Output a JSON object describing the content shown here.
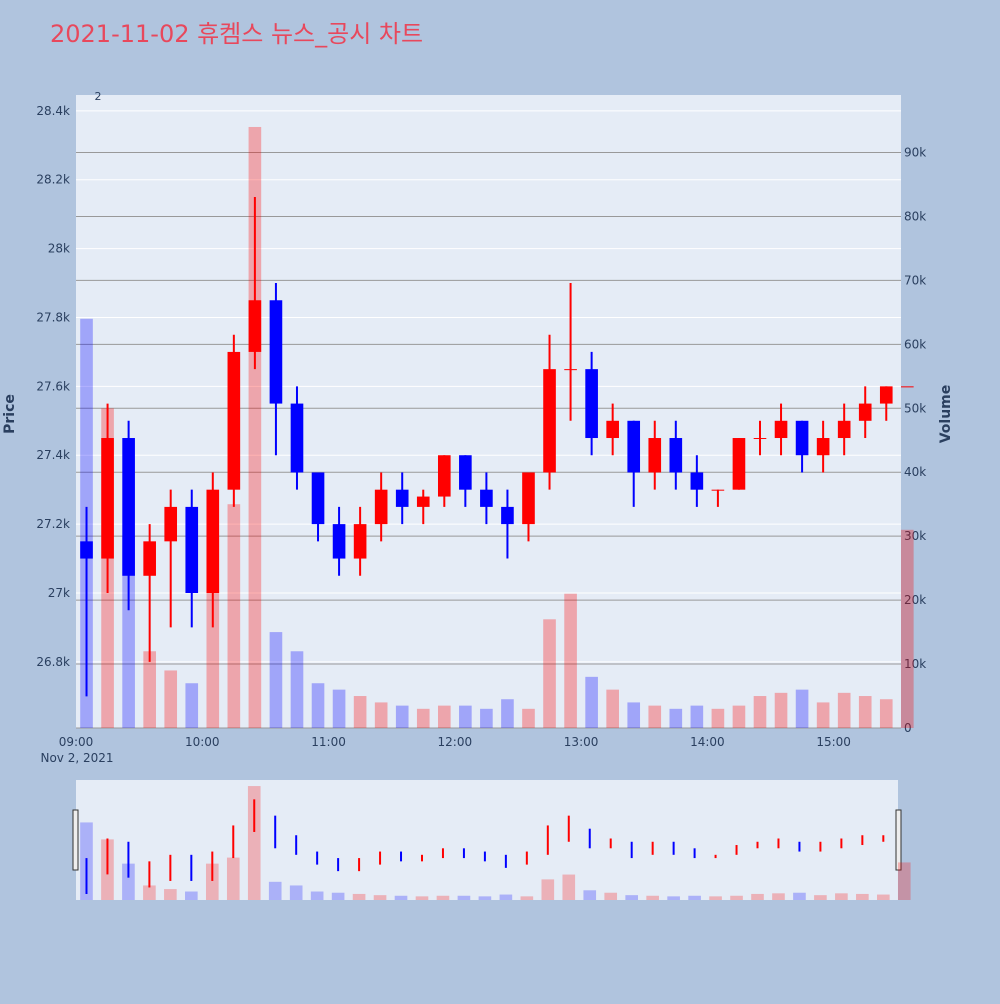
{
  "chart_data": {
    "type": "candlestick",
    "title": "2021-11-02 휴켐스 뉴스_공시 차트",
    "y_label": "Price",
    "y2_label": "Volume",
    "annotation": "2",
    "date_label": "Nov 2, 2021",
    "x": [
      "09:00",
      "09:10",
      "09:20",
      "09:30",
      "09:40",
      "09:50",
      "10:00",
      "10:10",
      "10:20",
      "10:30",
      "10:40",
      "10:50",
      "11:00",
      "11:10",
      "11:20",
      "11:30",
      "11:40",
      "11:50",
      "12:00",
      "12:10",
      "12:20",
      "12:30",
      "12:40",
      "12:50",
      "13:00",
      "13:10",
      "13:20",
      "13:30",
      "13:40",
      "13:50",
      "14:00",
      "14:10",
      "14:20",
      "14:30",
      "14:40",
      "14:50",
      "15:00",
      "15:10",
      "15:20",
      "15:30"
    ],
    "open": [
      27150,
      27100,
      27450,
      27050,
      27150,
      27250,
      27000,
      27300,
      27700,
      27850,
      27550,
      27350,
      27200,
      27100,
      27200,
      27300,
      27250,
      27280,
      27400,
      27300,
      27250,
      27200,
      27350,
      27650,
      27650,
      27450,
      27500,
      27350,
      27450,
      27350,
      27300,
      27300,
      27450,
      27450,
      27500,
      27400,
      27450,
      27500,
      27550,
      27600
    ],
    "high": [
      27250,
      27550,
      27500,
      27200,
      27300,
      27300,
      27350,
      27750,
      28150,
      27900,
      27600,
      27350,
      27250,
      27250,
      27350,
      27350,
      27300,
      27400,
      27400,
      27350,
      27300,
      27350,
      27750,
      27900,
      27700,
      27550,
      27500,
      27500,
      27500,
      27400,
      27300,
      27450,
      27500,
      27550,
      27500,
      27500,
      27550,
      27600,
      27600,
      27600
    ],
    "low": [
      26700,
      27000,
      26950,
      26800,
      26900,
      26900,
      26900,
      27250,
      27650,
      27400,
      27300,
      27150,
      27050,
      27050,
      27150,
      27200,
      27200,
      27250,
      27250,
      27200,
      27100,
      27150,
      27300,
      27500,
      27400,
      27400,
      27250,
      27300,
      27300,
      27250,
      27250,
      27300,
      27400,
      27400,
      27350,
      27350,
      27400,
      27450,
      27500,
      27600
    ],
    "close": [
      27100,
      27450,
      27050,
      27150,
      27250,
      27000,
      27300,
      27700,
      27850,
      27550,
      27350,
      27200,
      27100,
      27200,
      27300,
      27250,
      27280,
      27400,
      27300,
      27250,
      27200,
      27350,
      27650,
      27650,
      27450,
      27500,
      27350,
      27450,
      27350,
      27300,
      27300,
      27450,
      27450,
      27500,
      27400,
      27450,
      27500,
      27550,
      27600,
      27600
    ],
    "volume": [
      64000,
      50000,
      30000,
      12000,
      9000,
      7000,
      30000,
      35000,
      94000,
      15000,
      12000,
      7000,
      6000,
      5000,
      4000,
      3500,
      3000,
      3500,
      3500,
      3000,
      4500,
      3000,
      17000,
      21000,
      8000,
      6000,
      4000,
      3500,
      3000,
      3500,
      3000,
      3500,
      5000,
      5500,
      6000,
      4000,
      5500,
      5000,
      4500,
      31000
    ],
    "up_color": "#ff0000",
    "down_color": "#0000ff",
    "xlim": [
      "09:00",
      "15:32"
    ],
    "xticks": [
      "09:00",
      "10:00",
      "11:00",
      "12:00",
      "13:00",
      "14:00",
      "15:00"
    ],
    "ylim": [
      26608,
      28446
    ],
    "yticks": [
      {
        "value": 26800,
        "label": "26.8k"
      },
      {
        "value": 27000,
        "label": "27k"
      },
      {
        "value": 27200,
        "label": "27.2k"
      },
      {
        "value": 27400,
        "label": "27.4k"
      },
      {
        "value": 27600,
        "label": "27.6k"
      },
      {
        "value": 27800,
        "label": "27.8k"
      },
      {
        "value": 28000,
        "label": "28k"
      },
      {
        "value": 28200,
        "label": "28.2k"
      },
      {
        "value": 28400,
        "label": "28.4k"
      }
    ],
    "y2lim": [
      0,
      99000
    ],
    "y2ticks": [
      0,
      {
        "value": 10000,
        "label": "10k"
      },
      {
        "value": 20000,
        "label": "20k"
      },
      {
        "value": 30000,
        "label": "30k"
      },
      {
        "value": 40000,
        "label": "40k"
      },
      {
        "value": 50000,
        "label": "50k"
      },
      {
        "value": 60000,
        "label": "60k"
      },
      {
        "value": 70000,
        "label": "70k"
      },
      {
        "value": 80000,
        "label": "80k"
      },
      {
        "value": 90000,
        "label": "90k"
      }
    ],
    "grid": true
  }
}
